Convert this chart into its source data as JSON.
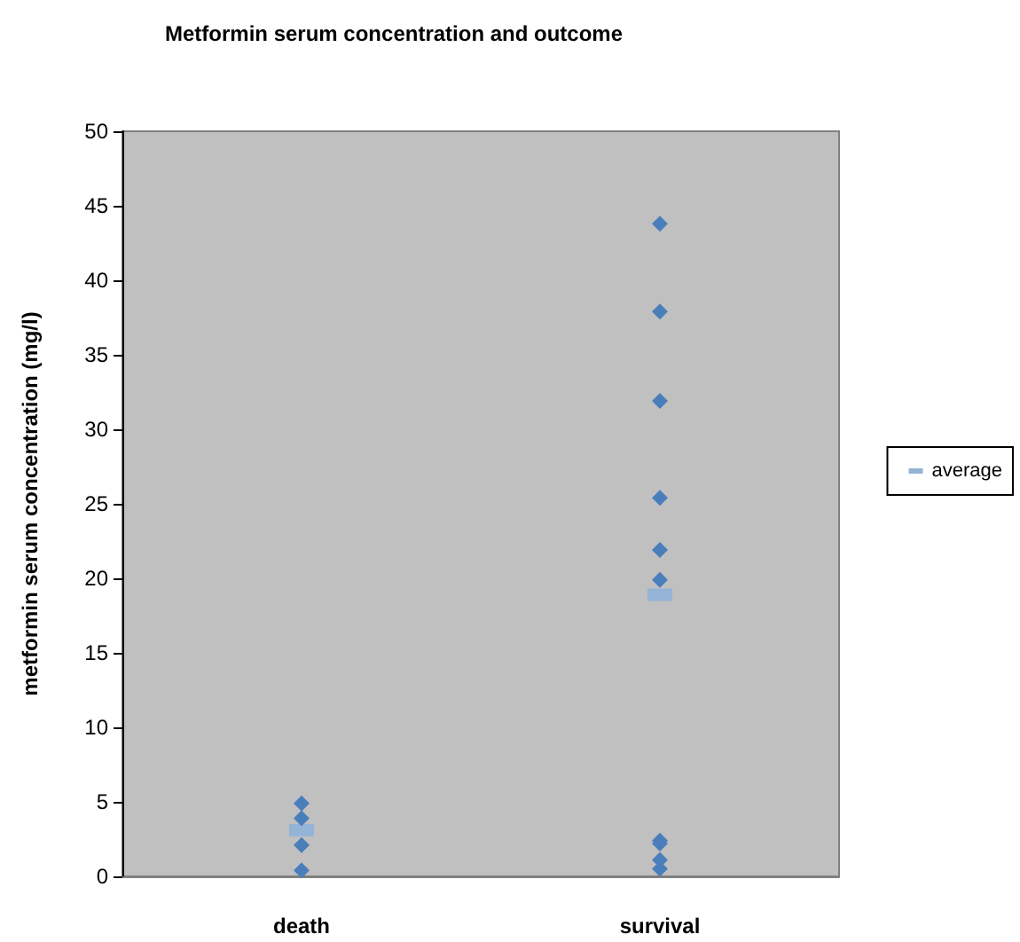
{
  "chart_data": {
    "type": "scatter",
    "title": "Metformin serum concentration and outcome",
    "ylabel": "metformin serum concentration (mg/l)",
    "categories": [
      "death",
      "survival"
    ],
    "series": [
      {
        "type": "scatter",
        "color": "#4a7ebb",
        "marker": "diamond",
        "x": [
          "death",
          "death",
          "death",
          "death",
          "survival",
          "survival",
          "survival",
          "survival",
          "survival",
          "survival",
          "survival",
          "survival",
          "survival",
          "survival"
        ],
        "values": [
          4.9,
          3.9,
          2.1,
          0.4,
          43.8,
          37.9,
          31.9,
          25.4,
          21.9,
          19.9,
          2.4,
          2.2,
          1.1,
          0.5
        ]
      },
      {
        "type": "scatter",
        "name": "average",
        "color": "#95b3d7",
        "marker": "square",
        "x": [
          "death",
          "survival"
        ],
        "values": [
          3.1,
          18.9
        ]
      }
    ],
    "ylim": [
      0,
      50
    ],
    "yticks": [
      0,
      5,
      10,
      15,
      20,
      25,
      30,
      35,
      40,
      45,
      50
    ],
    "grid": false,
    "legend": "right"
  }
}
